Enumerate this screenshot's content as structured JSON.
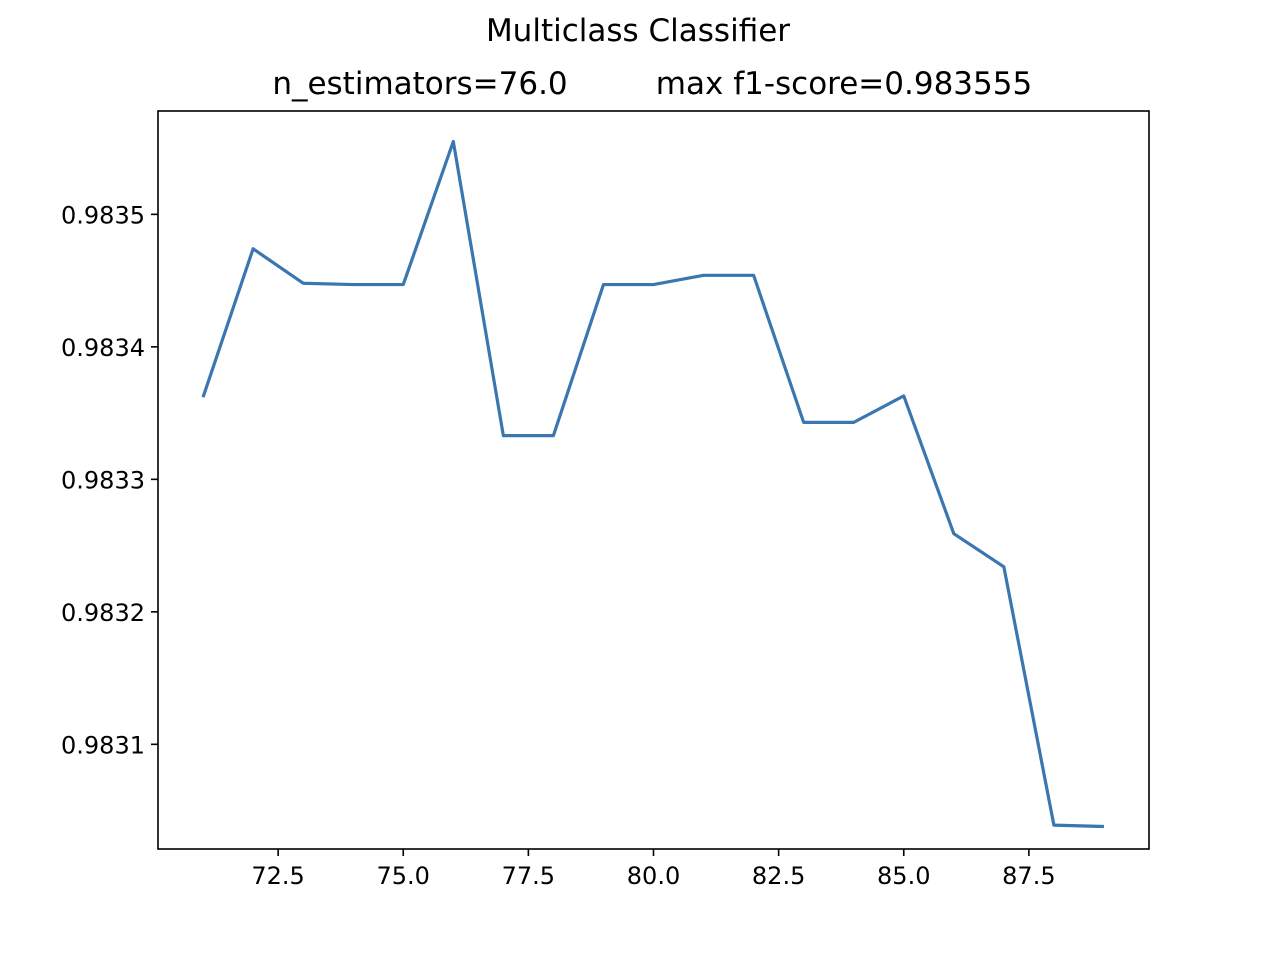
{
  "figure": {
    "suptitle": "Multiclass Classifier",
    "subtitle_left": "n_estimators=76.0",
    "subtitle_right": "max f1-score=0.983555"
  },
  "chart_data": {
    "type": "line",
    "title": "Multiclass Classifier",
    "subtitle": "n_estimators=76.0      max f1-score=0.983555",
    "xlabel": "",
    "ylabel": "",
    "xlim": [
      70.1,
      89.9
    ],
    "ylim": [
      0.983021,
      0.983578
    ],
    "grid": false,
    "legend": "none",
    "line_color": "#3a76af",
    "x_ticks": [
      72.5,
      75.0,
      77.5,
      80.0,
      82.5,
      85.0,
      87.5
    ],
    "x_tick_labels": [
      "72.5",
      "75.0",
      "77.5",
      "80.0",
      "82.5",
      "85.0",
      "87.5"
    ],
    "y_ticks": [
      0.9831,
      0.9832,
      0.9833,
      0.9834,
      0.9835
    ],
    "y_tick_labels": [
      "0.9831",
      "0.9832",
      "0.9833",
      "0.9834",
      "0.9835"
    ],
    "series": [
      {
        "x": [
          71,
          72,
          73,
          74,
          75,
          76,
          77,
          78,
          79,
          80,
          81,
          82,
          83,
          84,
          85,
          86,
          87,
          88,
          89
        ],
        "values": [
          0.983362,
          0.983474,
          0.983448,
          0.983447,
          0.983447,
          0.983555,
          0.983333,
          0.983333,
          0.983447,
          0.983447,
          0.983454,
          0.983454,
          0.983343,
          0.983343,
          0.983363,
          0.983259,
          0.983234,
          0.983039,
          0.983038
        ]
      }
    ]
  }
}
